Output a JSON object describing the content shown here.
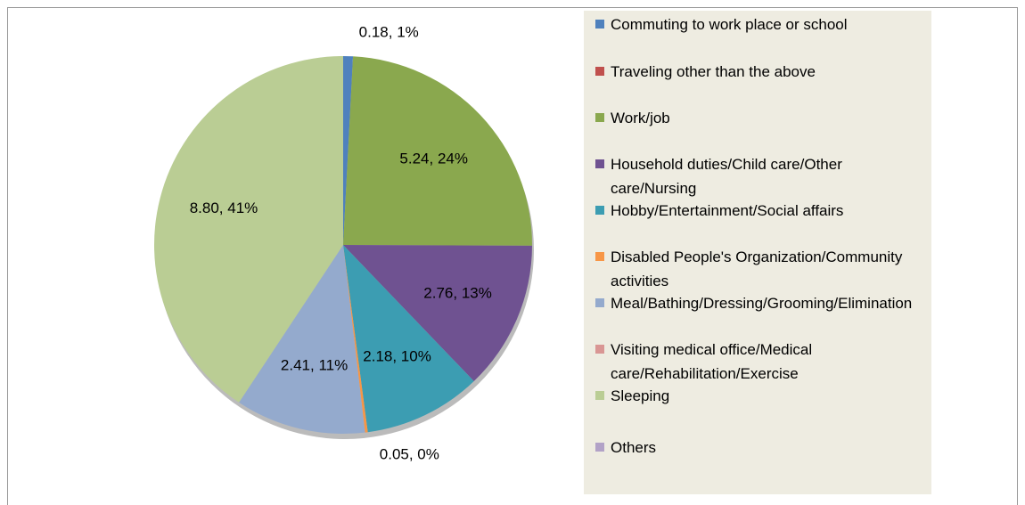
{
  "chart_data": {
    "type": "pie",
    "categories": [
      "Commuting to work place or school",
      "Traveling other than the above",
      "Work/job",
      "Household duties/Child care/Other care/Nursing",
      "Hobby/Entertainment/Social affairs",
      "Disabled People's Organization/Community activities",
      "Meal/Bathing/Dressing/Grooming/Elimination",
      "Visiting medical office/Medical care/Rehabilitation/Exercise",
      "Sleeping",
      "Others"
    ],
    "values": [
      0.18,
      0,
      5.24,
      2.76,
      2.18,
      0.05,
      2.41,
      0,
      8.8,
      0
    ],
    "value_labels": [
      "0.18, 1%",
      null,
      "5.24, 24%",
      "2.76, 13%",
      "2.18, 10%",
      "0.05, 0%",
      "2.41, 11%",
      null,
      "8.80, 41%",
      null
    ],
    "colors": [
      "#4f81bd",
      "#c0504d",
      "#8aa84e",
      "#6f5291",
      "#3c9db2",
      "#f79646",
      "#94aacd",
      "#d99694",
      "#bacd94",
      "#b2a2c7"
    ],
    "legend": "right"
  }
}
